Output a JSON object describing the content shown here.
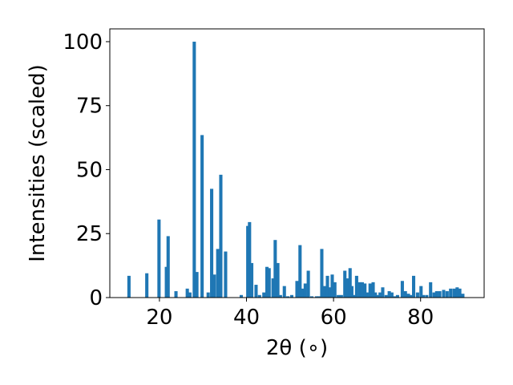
{
  "chart_data": {
    "type": "bar",
    "title": "",
    "xlabel": "2θ (∘)",
    "ylabel": "Intensities (scaled)",
    "xlim": [
      8.6,
      94.6
    ],
    "ylim": [
      0,
      105
    ],
    "xticks": [
      "20",
      "40",
      "60",
      "80"
    ],
    "yticks": [
      "0",
      "25",
      "50",
      "75",
      "100"
    ],
    "grid": false,
    "bar_color": "#1f77b4",
    "bar_width_units": 0.75,
    "series": [
      {
        "x": [
          13.0,
          17.1,
          19.9,
          21.6,
          22.0,
          23.8,
          26.4,
          27.0,
          28.0,
          28.6,
          29.8,
          31.2,
          32.0,
          32.6,
          33.4,
          34.1,
          35.2,
          38.8,
          40.3,
          40.7,
          41.2,
          42.2,
          43.0,
          44.0,
          44.7,
          45.2,
          46.1,
          46.6,
          47.2,
          47.8,
          48.7,
          49.5,
          50.4,
          51.6,
          52.3,
          52.8,
          53.5,
          54.2,
          55.0,
          56.1,
          56.7,
          57.3,
          58.0,
          58.6,
          59.2,
          59.7,
          60.3,
          61.1,
          61.8,
          62.6,
          63.2,
          63.8,
          64.2,
          64.8,
          65.3,
          66.0,
          66.6,
          67.2,
          67.7,
          68.4,
          69.1,
          69.6,
          70.1,
          70.7,
          71.3,
          72.1,
          72.8,
          73.4,
          74.0,
          74.7,
          75.8,
          76.5,
          77.2,
          77.8,
          78.4,
          79.3,
          80.1,
          80.6,
          81.4,
          82.3,
          83.1,
          83.7,
          84.4,
          85.3,
          86.1,
          86.9,
          87.7,
          88.4,
          89.0,
          89.7
        ],
        "values": [
          8.5,
          9.5,
          30.5,
          12.0,
          24.0,
          2.5,
          3.5,
          2.0,
          100.0,
          10.0,
          63.5,
          2.0,
          42.5,
          9.0,
          19.0,
          48.0,
          18.0,
          1.0,
          28.0,
          29.5,
          13.5,
          5.0,
          1.0,
          2.0,
          12.0,
          11.5,
          7.5,
          22.5,
          13.5,
          1.0,
          4.5,
          0.5,
          1.0,
          6.5,
          20.5,
          3.5,
          5.5,
          10.5,
          0.5,
          0.5,
          0.5,
          19.0,
          4.5,
          8.5,
          4.0,
          9.0,
          6.0,
          1.0,
          1.0,
          10.5,
          7.5,
          11.5,
          4.5,
          1.0,
          8.5,
          6.0,
          6.0,
          5.5,
          2.0,
          5.5,
          6.0,
          2.0,
          1.0,
          2.0,
          4.0,
          1.0,
          2.5,
          2.0,
          0.5,
          1.0,
          6.5,
          2.5,
          1.5,
          1.0,
          8.5,
          2.0,
          4.5,
          1.0,
          1.0,
          6.0,
          2.0,
          2.5,
          2.5,
          3.0,
          2.5,
          3.5,
          3.5,
          4.0,
          3.5,
          1.5
        ]
      }
    ]
  }
}
